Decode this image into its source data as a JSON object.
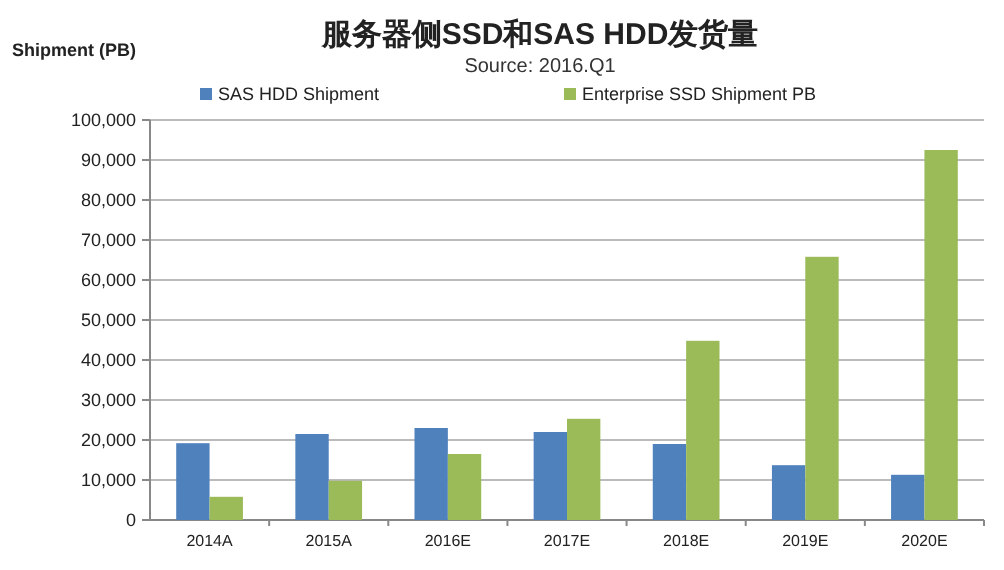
{
  "chart_data": {
    "type": "bar",
    "title": "服务器侧SSD和SAS HDD发货量",
    "subtitle": "Source: 2016.Q1",
    "ylabel": "Shipment (PB)",
    "categories": [
      "2014A",
      "2015A",
      "2016E",
      "2017E",
      "2018E",
      "2019E",
      "2020E"
    ],
    "series": [
      {
        "name": "SAS HDD Shipment",
        "color": "#4f81bd",
        "values": [
          19200,
          21500,
          23000,
          22000,
          19000,
          13700,
          11300
        ]
      },
      {
        "name": "Enterprise SSD Shipment PB",
        "color": "#9bbb59",
        "values": [
          5800,
          9800,
          16500,
          25300,
          44800,
          65800,
          92500
        ]
      }
    ],
    "ylim": [
      0,
      100000
    ],
    "yticks": [
      {
        "value": 0,
        "label": "0"
      },
      {
        "value": 10000,
        "label": "10,000"
      },
      {
        "value": 20000,
        "label": "20,000"
      },
      {
        "value": 30000,
        "label": "30,000"
      },
      {
        "value": 40000,
        "label": "40,000"
      },
      {
        "value": 50000,
        "label": "50,000"
      },
      {
        "value": 60000,
        "label": "60,000"
      },
      {
        "value": 70000,
        "label": "70,000"
      },
      {
        "value": 80000,
        "label": "80,000"
      },
      {
        "value": 90000,
        "label": "90,000"
      },
      {
        "value": 100000,
        "label": "100,000"
      }
    ],
    "grid": "y",
    "legend": "top"
  }
}
